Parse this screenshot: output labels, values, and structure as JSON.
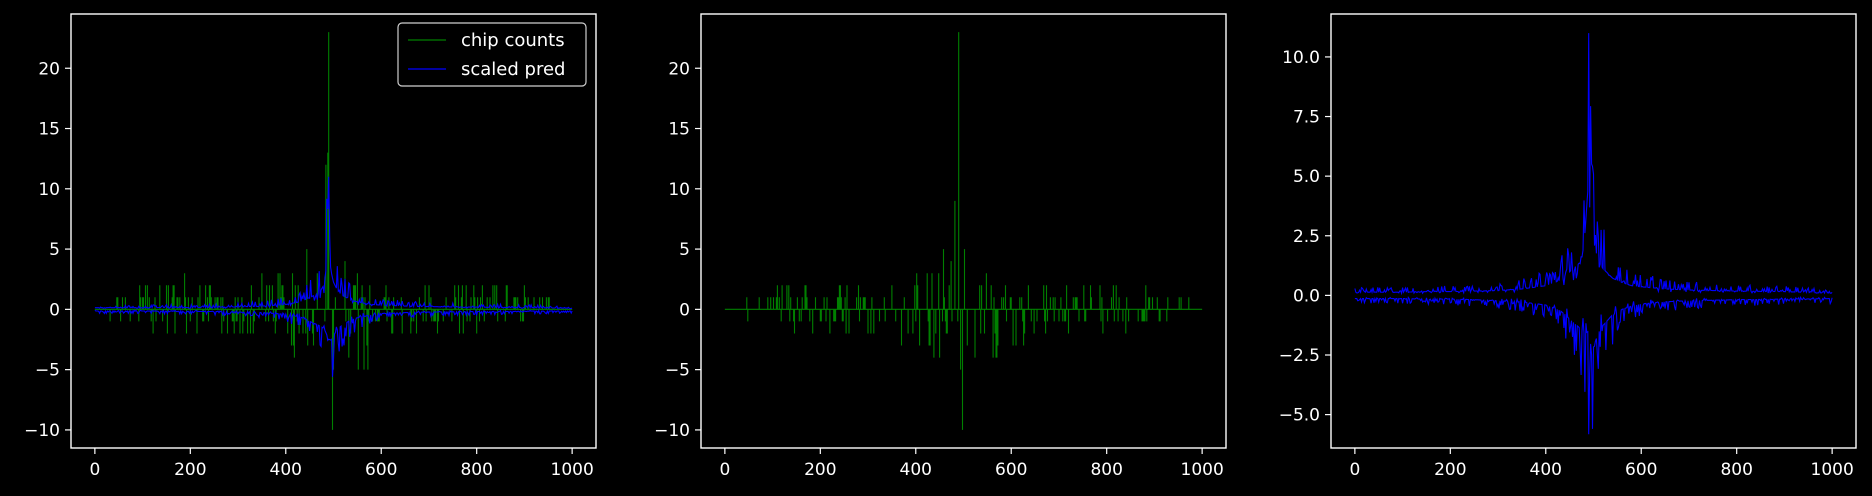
{
  "chart_data": [
    {
      "type": "line",
      "title": "",
      "xlabel": "",
      "ylabel": "",
      "xlim": [
        -50,
        1050
      ],
      "ylim": [
        -11.5,
        24.5
      ],
      "xticks": [
        0,
        200,
        400,
        600,
        800,
        1000
      ],
      "yticks": [
        -10,
        -5,
        0,
        5,
        10,
        15,
        20
      ],
      "grid": false,
      "legend": {
        "placement": "top-right",
        "entries": [
          "chip counts",
          "scaled pred"
        ]
      },
      "series": [
        {
          "name": "chip counts",
          "color": "#008000",
          "style": "signed spikes (counts per bin)",
          "x": [
            0,
            50,
            100,
            150,
            200,
            250,
            300,
            350,
            400,
            430,
            450,
            470,
            480,
            490,
            495,
            500,
            510,
            520,
            540,
            560,
            580,
            600,
            650,
            700,
            800,
            900,
            1000
          ],
          "envelope_max": [
            0,
            1,
            2,
            2,
            3,
            2,
            2,
            3,
            3,
            4,
            5,
            6,
            7,
            23,
            9,
            6,
            4,
            4,
            4,
            3,
            3,
            2,
            2,
            2,
            2,
            2,
            0
          ],
          "envelope_min": [
            0,
            -1,
            -2,
            -2,
            -3,
            -2,
            -2,
            -3,
            -3,
            -4,
            -4,
            -5,
            -6,
            -8,
            -10,
            -7,
            -6,
            -6,
            -5,
            -6,
            -4,
            -3,
            -3,
            -2,
            -2,
            -1,
            0
          ]
        },
        {
          "name": "scaled pred",
          "color": "#0000ff",
          "style": "signed prediction band",
          "x": [
            0,
            50,
            100,
            150,
            200,
            250,
            300,
            350,
            400,
            430,
            450,
            470,
            480,
            490,
            495,
            500,
            510,
            520,
            540,
            560,
            580,
            600,
            650,
            700,
            800,
            900,
            1000
          ],
          "envelope_max": [
            0.3,
            0.3,
            0.3,
            0.35,
            0.35,
            0.4,
            0.45,
            0.6,
            0.9,
            1.4,
            2.2,
            3.0,
            4.5,
            11.0,
            7.0,
            5.0,
            3.2,
            2.5,
            1.6,
            1.2,
            0.9,
            0.8,
            0.6,
            0.5,
            0.4,
            0.35,
            0.2
          ],
          "envelope_min": [
            -0.3,
            -0.3,
            -0.3,
            -0.35,
            -0.35,
            -0.4,
            -0.5,
            -0.6,
            -0.9,
            -1.4,
            -2.2,
            -3.0,
            -3.5,
            -5.5,
            -5.7,
            -4.8,
            -3.5,
            -2.8,
            -1.8,
            -1.3,
            -1.0,
            -0.8,
            -0.6,
            -0.5,
            -0.4,
            -0.35,
            -0.3
          ]
        }
      ]
    },
    {
      "type": "line",
      "title": "",
      "xlabel": "",
      "ylabel": "",
      "xlim": [
        -50,
        1050
      ],
      "ylim": [
        -11.5,
        24.5
      ],
      "xticks": [
        0,
        200,
        400,
        600,
        800,
        1000
      ],
      "yticks": [
        -10,
        -5,
        0,
        5,
        10,
        15,
        20
      ],
      "grid": false,
      "legend": null,
      "series": [
        {
          "color": "#008000",
          "style": "signed spikes (counts per bin)",
          "x": [
            0,
            50,
            100,
            150,
            200,
            250,
            300,
            350,
            400,
            430,
            450,
            470,
            480,
            490,
            495,
            500,
            510,
            520,
            540,
            560,
            580,
            600,
            650,
            700,
            800,
            900,
            1000
          ],
          "envelope_max": [
            0,
            1,
            2,
            2,
            3,
            2,
            2,
            3,
            3,
            4,
            5,
            6,
            7,
            23,
            9,
            6,
            4,
            4,
            4,
            3,
            3,
            2,
            2,
            2,
            2,
            2,
            0
          ],
          "envelope_min": [
            0,
            -1,
            -2,
            -2,
            -3,
            -2,
            -2,
            -3,
            -3,
            -4,
            -4,
            -5,
            -6,
            -8,
            -10,
            -7,
            -6,
            -6,
            -5,
            -6,
            -4,
            -3,
            -3,
            -2,
            -2,
            -1,
            0
          ]
        }
      ]
    },
    {
      "type": "line",
      "title": "",
      "xlabel": "",
      "ylabel": "",
      "xlim": [
        -50,
        1050
      ],
      "ylim": [
        -6.4,
        11.8
      ],
      "xticks": [
        0,
        200,
        400,
        600,
        800,
        1000
      ],
      "yticks": [
        -5.0,
        -2.5,
        0.0,
        2.5,
        5.0,
        7.5,
        10.0
      ],
      "ytick_labels": [
        "−5.0",
        "−2.5",
        "0.0",
        "2.5",
        "5.0",
        "7.5",
        "10.0"
      ],
      "grid": false,
      "legend": null,
      "series": [
        {
          "color": "#0000ff",
          "style": "signed prediction band",
          "x": [
            0,
            50,
            100,
            150,
            200,
            250,
            300,
            350,
            400,
            430,
            450,
            470,
            480,
            490,
            495,
            500,
            510,
            520,
            540,
            560,
            580,
            600,
            650,
            700,
            800,
            900,
            1000
          ],
          "envelope_max": [
            0.3,
            0.3,
            0.3,
            0.35,
            0.35,
            0.4,
            0.45,
            0.6,
            0.9,
            1.4,
            2.2,
            3.0,
            4.5,
            11.0,
            7.0,
            5.0,
            3.2,
            2.5,
            1.6,
            1.2,
            0.9,
            0.8,
            0.6,
            0.5,
            0.4,
            0.35,
            0.2
          ],
          "envelope_min": [
            -0.3,
            -0.3,
            -0.3,
            -0.35,
            -0.35,
            -0.4,
            -0.5,
            -0.6,
            -0.9,
            -1.4,
            -2.2,
            -3.0,
            -3.5,
            -5.5,
            -5.7,
            -4.8,
            -3.5,
            -2.8,
            -1.8,
            -1.3,
            -1.0,
            -0.8,
            -0.6,
            -0.5,
            -0.4,
            -0.35,
            -0.3
          ]
        }
      ]
    }
  ]
}
